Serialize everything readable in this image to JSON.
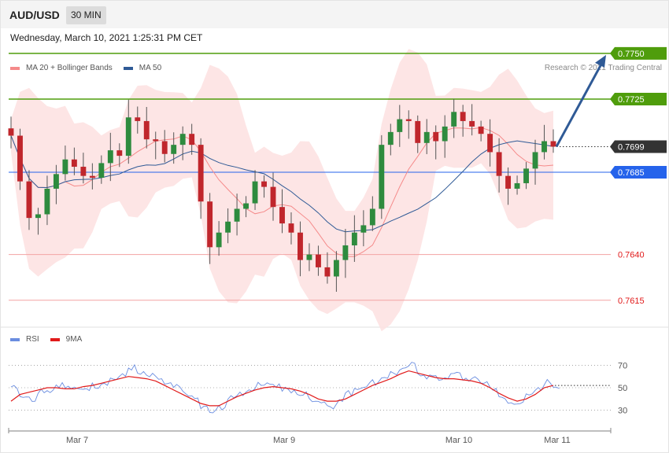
{
  "header": {
    "pair": "AUD/USD",
    "timeframe": "30 MIN"
  },
  "datetime": "Wednesday, March 10, 2021 1:25:31 PM CET",
  "legend": {
    "ma20_label": "MA 20 + Bollinger Bands",
    "ma50_label": "MA 50",
    "ma20_color": "#f58a8a",
    "ma50_color": "#2f5a96"
  },
  "credit": "Research © 2021 Trading Central",
  "rsi_legend": {
    "rsi_label": "RSI",
    "ma_label": "9MA",
    "rsi_color": "#6a8de0",
    "ma_color": "#e11a1a"
  },
  "chart_data": {
    "type": "candlestick",
    "symbol": "AUD/USD",
    "interval": "30 MIN",
    "ylim": [
      0.7605,
      0.7762
    ],
    "x_tick_labels": [
      "Mar 7",
      "Mar 9",
      "Mar 10",
      "Mar 11"
    ],
    "levels": [
      {
        "value": 0.775,
        "label": "0.7750",
        "color": "#4f9d0c",
        "kind": "resistance"
      },
      {
        "value": 0.7725,
        "label": "0.7725",
        "color": "#4f9d0c",
        "kind": "resistance"
      },
      {
        "value": 0.7699,
        "label": "0.7699",
        "color": "#333333",
        "kind": "last-price"
      },
      {
        "value": 0.7685,
        "label": "0.7685",
        "color": "#2563eb",
        "kind": "pivot"
      },
      {
        "value": 0.764,
        "label": "0.7640",
        "color": "#e11a1a",
        "kind": "support"
      },
      {
        "value": 0.7615,
        "label": "0.7615",
        "color": "#e11a1a",
        "kind": "support"
      }
    ],
    "target_arrow": {
      "from": 0.7699,
      "to": 0.775
    },
    "close_series": [
      0.7705,
      0.768,
      0.766,
      0.7662,
      0.7676,
      0.7684,
      0.7692,
      0.7688,
      0.7683,
      0.7682,
      0.769,
      0.7697,
      0.7694,
      0.7715,
      0.7713,
      0.7703,
      0.7702,
      0.7695,
      0.77,
      0.7706,
      0.77,
      0.7669,
      0.7644,
      0.7652,
      0.7658,
      0.7665,
      0.7668,
      0.768,
      0.7677,
      0.7666,
      0.7657,
      0.7652,
      0.7637,
      0.764,
      0.7633,
      0.7628,
      0.7637,
      0.7645,
      0.7652,
      0.7656,
      0.7665,
      0.77,
      0.7707,
      0.7714,
      0.7713,
      0.7701,
      0.7707,
      0.7702,
      0.771,
      0.7718,
      0.7713,
      0.771,
      0.7706,
      0.7696,
      0.7683,
      0.7676,
      0.7679,
      0.7687,
      0.7696,
      0.7702,
      0.7699
    ],
    "rsi": {
      "ylim": [
        15,
        85
      ],
      "ticks": [
        30,
        50,
        70
      ],
      "rsi_values": [
        52,
        43,
        40,
        48,
        48,
        53,
        50,
        48,
        50,
        52,
        55,
        58,
        60,
        68,
        62,
        60,
        58,
        52,
        50,
        45,
        40,
        32,
        28,
        33,
        40,
        45,
        48,
        52,
        55,
        52,
        48,
        46,
        44,
        40,
        38,
        34,
        38,
        45,
        50,
        53,
        55,
        60,
        63,
        65,
        70,
        63,
        60,
        58,
        60,
        62,
        58,
        57,
        55,
        50,
        40,
        36,
        38,
        42,
        48,
        55,
        52
      ],
      "ma_values": [
        38,
        44,
        46,
        48,
        50,
        50,
        49,
        49,
        51,
        52,
        54,
        56,
        58,
        60,
        59,
        58,
        56,
        52,
        48,
        44,
        40,
        36,
        34,
        34,
        38,
        42,
        45,
        48,
        50,
        51,
        50,
        49,
        47,
        44,
        40,
        38,
        38,
        40,
        44,
        48,
        52,
        55,
        58,
        62,
        65,
        63,
        61,
        59,
        58,
        58,
        57,
        56,
        54,
        50,
        45,
        41,
        38,
        40,
        44,
        50,
        52
      ]
    }
  }
}
